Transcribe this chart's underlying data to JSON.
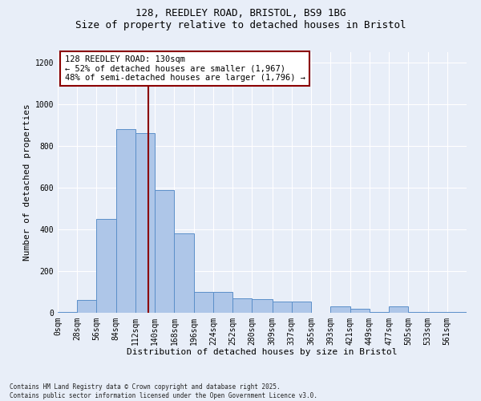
{
  "title_line1": "128, REEDLEY ROAD, BRISTOL, BS9 1BG",
  "title_line2": "Size of property relative to detached houses in Bristol",
  "xlabel": "Distribution of detached houses by size in Bristol",
  "ylabel": "Number of detached properties",
  "bin_edges": [
    0,
    28,
    56,
    84,
    112,
    140,
    168,
    196,
    224,
    252,
    280,
    309,
    337,
    365,
    393,
    421,
    449,
    477,
    505,
    533,
    561,
    589
  ],
  "bar_labels": [
    "0sqm",
    "28sqm",
    "56sqm",
    "84sqm",
    "112sqm",
    "140sqm",
    "168sqm",
    "196sqm",
    "224sqm",
    "252sqm",
    "280sqm",
    "309sqm",
    "337sqm",
    "365sqm",
    "393sqm",
    "421sqm",
    "449sqm",
    "477sqm",
    "505sqm",
    "533sqm",
    "561sqm"
  ],
  "values": [
    5,
    60,
    450,
    880,
    860,
    590,
    380,
    100,
    100,
    70,
    65,
    55,
    55,
    0,
    30,
    20,
    5,
    30,
    5,
    2,
    2
  ],
  "bar_color": "#aec6e8",
  "bar_edge_color": "#5b8fc9",
  "background_color": "#e8eef8",
  "fig_background_color": "#e8eef8",
  "red_line_x": 130,
  "annotation_title": "128 REEDLEY ROAD: 130sqm",
  "annotation_line1": "← 52% of detached houses are smaller (1,967)",
  "annotation_line2": "48% of semi-detached houses are larger (1,796) →",
  "ylim": [
    0,
    1250
  ],
  "yticks": [
    0,
    200,
    400,
    600,
    800,
    1000,
    1200
  ],
  "title_fontsize": 9,
  "xlabel_fontsize": 8,
  "ylabel_fontsize": 8,
  "tick_fontsize": 7,
  "annot_fontsize": 7.5,
  "footer_line1": "Contains HM Land Registry data © Crown copyright and database right 2025.",
  "footer_line2": "Contains public sector information licensed under the Open Government Licence v3.0.",
  "footer_fontsize": 5.5
}
